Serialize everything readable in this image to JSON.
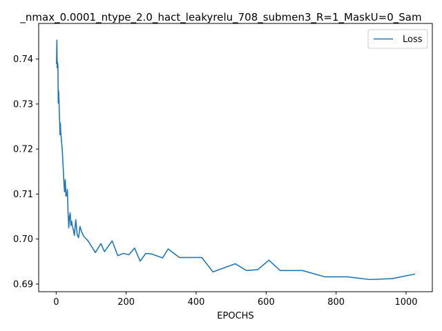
{
  "chart_data": {
    "type": "line",
    "title": "_nmax_0.0001_ntype_2.0_hact_leakyrelu_708_submen3_R=1_MaskU=0_Sam",
    "xlabel": "EPOCHS",
    "ylabel": "",
    "xlim": [
      -50,
      1075
    ],
    "ylim": [
      0.6883,
      0.7479
    ],
    "xticks": [
      0,
      200,
      400,
      600,
      800,
      1000
    ],
    "yticks": [
      0.69,
      0.7,
      0.71,
      0.72,
      0.73,
      0.74
    ],
    "ytick_labels": [
      "0.69",
      "0.70",
      "0.71",
      "0.72",
      "0.73",
      "0.74"
    ],
    "grid": false,
    "legend_position": "top-right",
    "colors": {
      "Loss": "#1f77b4"
    },
    "series": [
      {
        "name": "Loss",
        "x": [
          1,
          2,
          3,
          4,
          5,
          6,
          7,
          8,
          9,
          10,
          11,
          12,
          13,
          14,
          15,
          16,
          17,
          18,
          19,
          20,
          21,
          22,
          24,
          26,
          28,
          30,
          32,
          34,
          36,
          38,
          40,
          42,
          44,
          46,
          48,
          52,
          56,
          60,
          64,
          68,
          72,
          76,
          80,
          90,
          100,
          112,
          128,
          138,
          160,
          176,
          192,
          208,
          224,
          240,
          256,
          272,
          304,
          320,
          352,
          416,
          448,
          512,
          544,
          576,
          608,
          640,
          704,
          768,
          832,
          896,
          960,
          1024
        ],
        "y": [
          0.739,
          0.7442,
          0.738,
          0.7392,
          0.7385,
          0.7302,
          0.733,
          0.7312,
          0.728,
          0.726,
          0.7232,
          0.7258,
          0.7238,
          0.723,
          0.722,
          0.721,
          0.7202,
          0.719,
          0.7172,
          0.716,
          0.7145,
          0.7128,
          0.7105,
          0.7132,
          0.7095,
          0.7098,
          0.711,
          0.706,
          0.7025,
          0.705,
          0.7058,
          0.703,
          0.704,
          0.703,
          0.7025,
          0.7008,
          0.7043,
          0.701,
          0.7003,
          0.7028,
          0.7018,
          0.701,
          0.7005,
          0.6997,
          0.6985,
          0.697,
          0.699,
          0.6972,
          0.6996,
          0.6963,
          0.6968,
          0.6965,
          0.698,
          0.6951,
          0.6968,
          0.6967,
          0.6958,
          0.6978,
          0.6959,
          0.6959,
          0.6927,
          0.6945,
          0.693,
          0.6932,
          0.6953,
          0.693,
          0.693,
          0.6916,
          0.6916,
          0.691,
          0.6912,
          0.6922
        ]
      }
    ]
  }
}
